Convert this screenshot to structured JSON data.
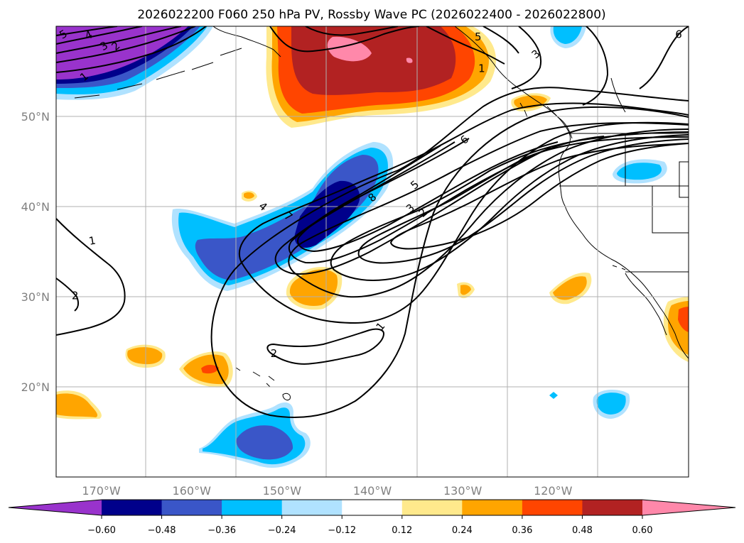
{
  "chart_data": {
    "type": "heatmap",
    "title": "2026022200 F060 250 hPa PV, Rossby Wave PC (2026022400 - 2026022800)",
    "x_ticks": [
      "170°W",
      "160°W",
      "150°W",
      "140°W",
      "130°W",
      "120°W"
    ],
    "x_tick_values": [
      -170,
      -160,
      -150,
      -140,
      -130,
      -120
    ],
    "y_ticks": [
      "50°N",
      "40°N",
      "30°N",
      "20°N"
    ],
    "y_tick_values": [
      50,
      40,
      30,
      20
    ],
    "lon_range": [
      -175,
      -105
    ],
    "lat_range": [
      10,
      60
    ],
    "colorbar": {
      "extend": "both",
      "levels": [
        -0.6,
        -0.48,
        -0.36,
        -0.24,
        -0.12,
        0.12,
        0.24,
        0.36,
        0.48,
        0.6
      ],
      "tick_labels": [
        "−0.60",
        "−0.48",
        "−0.36",
        "−0.24",
        "−0.12",
        "0.12",
        "0.24",
        "0.36",
        "0.48",
        "0.60"
      ],
      "colors": [
        "#9933cc",
        "#00008b",
        "#3a56c8",
        "#00bfff",
        "#b0e2ff",
        "#ffffff",
        "#ffe98c",
        "#ffa500",
        "#ff4500",
        "#b22222",
        "#ff88aa"
      ]
    },
    "pv_contour_labels": [
      {
        "text": "5",
        "lon": -174.2,
        "lat": 59.1,
        "rot": -30
      },
      {
        "text": "4",
        "lon": -171.4,
        "lat": 59.0,
        "rot": -25
      },
      {
        "text": "3",
        "lon": -169.7,
        "lat": 57.8,
        "rot": -30
      },
      {
        "text": "2",
        "lon": -168.4,
        "lat": 57.8,
        "rot": -40
      },
      {
        "text": "1",
        "lon": -171.9,
        "lat": 54.4,
        "rot": -40
      },
      {
        "text": "5",
        "lon": -128.3,
        "lat": 58.8,
        "rot": 0
      },
      {
        "text": "3",
        "lon": -121.9,
        "lat": 56.9,
        "rot": -40
      },
      {
        "text": "1",
        "lon": -127.9,
        "lat": 55.3,
        "rot": 0
      },
      {
        "text": "6",
        "lon": -106.1,
        "lat": 59.1,
        "rot": 0
      },
      {
        "text": "6",
        "lon": -129.8,
        "lat": 47.4,
        "rot": -40
      },
      {
        "text": "8",
        "lon": -140.0,
        "lat": 41.0,
        "rot": -40
      },
      {
        "text": "5",
        "lon": -135.3,
        "lat": 42.4,
        "rot": -40
      },
      {
        "text": "3",
        "lon": -135.8,
        "lat": 39.8,
        "rot": -40
      },
      {
        "text": "2",
        "lon": -134.4,
        "lat": 39.3,
        "rot": -40
      },
      {
        "text": "4",
        "lon": -152.1,
        "lat": 40.0,
        "rot": 40
      },
      {
        "text": "7",
        "lon": -149.3,
        "lat": 38.9,
        "rot": 40
      },
      {
        "text": "1",
        "lon": -171.0,
        "lat": 36.2,
        "rot": -10
      },
      {
        "text": "2",
        "lon": -172.9,
        "lat": 30.1,
        "rot": 0
      },
      {
        "text": "2",
        "lon": -150.9,
        "lat": 23.7,
        "rot": 0
      },
      {
        "text": "1",
        "lon": -139.1,
        "lat": 26.7,
        "rot": -50
      }
    ]
  }
}
